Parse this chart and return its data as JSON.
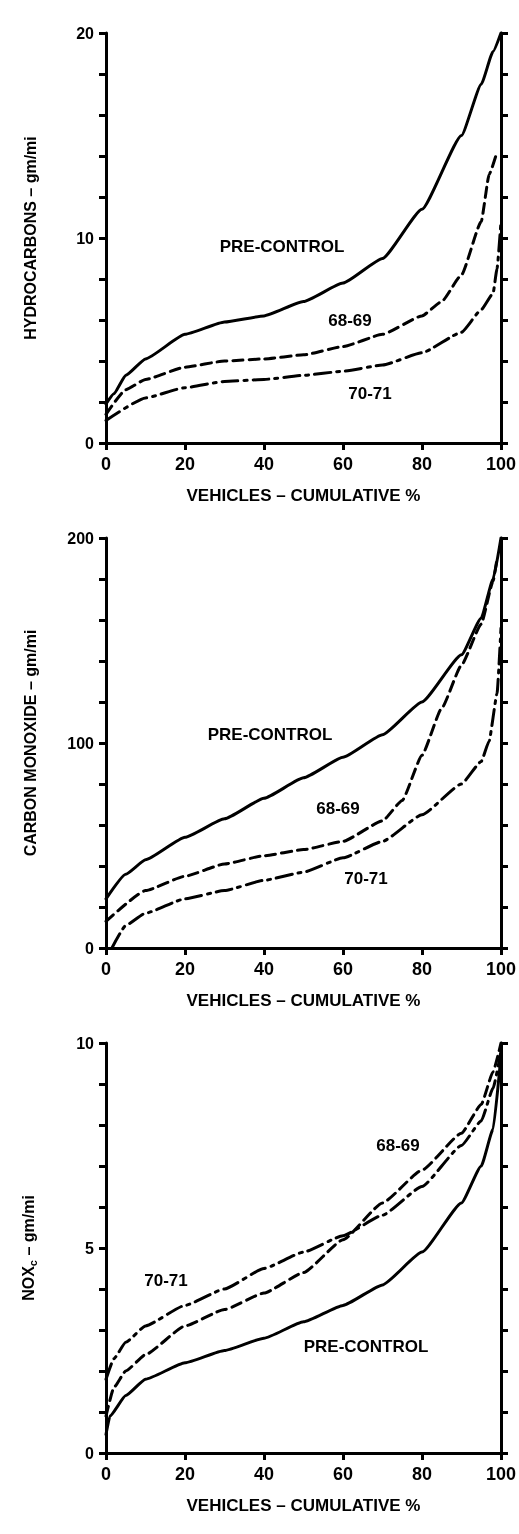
{
  "chart_data": [
    {
      "type": "line",
      "xlabel": "VEHICLES – CUMULATIVE %",
      "ylabel": "HYDROCARBONS – gm/mi",
      "xlim": [
        0,
        100
      ],
      "xticks": [
        0,
        20,
        40,
        60,
        80,
        100
      ],
      "ylim": [
        0,
        20
      ],
      "yticks": [
        0,
        {
          "value": 2,
          "label": null
        },
        {
          "value": 4,
          "label": null
        },
        {
          "value": 6,
          "label": null
        },
        {
          "value": 8,
          "label": null
        },
        10,
        {
          "value": 12,
          "label": null
        },
        {
          "value": 14,
          "label": null
        },
        {
          "value": 16,
          "label": null
        },
        {
          "value": 18,
          "label": null
        },
        20
      ],
      "grid": false,
      "legend": false,
      "marker": "none",
      "series": [
        {
          "name": "PRE-CONTROL",
          "color": "#000000",
          "line_style": "solid",
          "x": [
            0,
            2,
            5,
            10,
            20,
            30,
            40,
            50,
            60,
            70,
            80,
            90,
            95,
            98,
            100
          ],
          "values": [
            1.9,
            2.4,
            3.3,
            4.1,
            5.3,
            5.9,
            6.2,
            6.9,
            7.8,
            9.0,
            11.4,
            15.0,
            17.5,
            19.1,
            20
          ]
        },
        {
          "name": "68-69",
          "color": "#000000",
          "line_style": "dashed",
          "x": [
            0,
            5,
            10,
            20,
            30,
            40,
            50,
            60,
            70,
            80,
            85,
            90,
            95,
            97,
            99
          ],
          "values": [
            1.4,
            2.6,
            3.1,
            3.7,
            4.0,
            4.1,
            4.3,
            4.7,
            5.3,
            6.2,
            6.9,
            8.2,
            10.8,
            13.1,
            14.2
          ]
        },
        {
          "name": "70-71",
          "color": "#000000",
          "line_style": "dashdot",
          "x": [
            0,
            10,
            20,
            30,
            40,
            50,
            60,
            70,
            80,
            90,
            95,
            98,
            99,
            100
          ],
          "values": [
            1.1,
            2.2,
            2.7,
            3.0,
            3.1,
            3.3,
            3.5,
            3.8,
            4.4,
            5.4,
            6.5,
            7.3,
            8.5,
            10.8
          ]
        }
      ]
    },
    {
      "type": "line",
      "xlabel": "VEHICLES – CUMULATIVE %",
      "ylabel": "CARBON MONOXIDE – gm/mi",
      "xlim": [
        0,
        100
      ],
      "xticks": [
        0,
        20,
        40,
        60,
        80,
        100
      ],
      "ylim": [
        0,
        200
      ],
      "yticks": [
        0,
        {
          "value": 20,
          "label": null
        },
        {
          "value": 40,
          "label": null
        },
        {
          "value": 60,
          "label": null
        },
        {
          "value": 80,
          "label": null
        },
        100,
        {
          "value": 120,
          "label": null
        },
        {
          "value": 140,
          "label": null
        },
        {
          "value": 160,
          "label": null
        },
        {
          "value": 180,
          "label": null
        },
        200
      ],
      "grid": false,
      "legend": false,
      "marker": "none",
      "series": [
        {
          "name": "PRE-CONTROL",
          "color": "#000000",
          "line_style": "solid",
          "x": [
            0,
            5,
            10,
            20,
            30,
            40,
            50,
            60,
            70,
            80,
            90,
            95,
            98,
            100
          ],
          "values": [
            24,
            36,
            43,
            54,
            63,
            73,
            83,
            93,
            104,
            120,
            143,
            161,
            180,
            200
          ]
        },
        {
          "name": "68-69",
          "color": "#000000",
          "line_style": "dashed",
          "x": [
            0,
            10,
            20,
            30,
            40,
            50,
            60,
            70,
            75,
            80,
            85,
            90,
            95,
            98,
            99
          ],
          "values": [
            13,
            28,
            35,
            41,
            45,
            48,
            52,
            62,
            72,
            94,
            117,
            138,
            158,
            179,
            190
          ]
        },
        {
          "name": "70-71",
          "color": "#000000",
          "line_style": "dashdot",
          "x": [
            1.5,
            5,
            10,
            20,
            30,
            40,
            50,
            60,
            70,
            80,
            90,
            95,
            97,
            99,
            100
          ],
          "values": [
            0,
            11,
            17,
            24,
            28,
            33,
            37,
            44,
            52,
            65,
            80,
            91,
            101,
            124,
            156
          ]
        }
      ]
    },
    {
      "type": "line",
      "xlabel": "VEHICLES – CUMULATIVE %",
      "ylabel": "NOX$_{c}$ – gm/mi",
      "xlim": [
        0,
        100
      ],
      "xticks": [
        0,
        20,
        40,
        60,
        80,
        100
      ],
      "ylim": [
        0,
        10
      ],
      "yticks": [
        0,
        {
          "value": 1,
          "label": null
        },
        {
          "value": 2,
          "label": null
        },
        {
          "value": 3,
          "label": null
        },
        {
          "value": 4,
          "label": null
        },
        5,
        {
          "value": 6,
          "label": null
        },
        {
          "value": 7,
          "label": null
        },
        {
          "value": 8,
          "label": null
        },
        {
          "value": 9,
          "label": null
        },
        10
      ],
      "grid": false,
      "legend": false,
      "marker": "none",
      "series": [
        {
          "name": "PRE-CONTROL",
          "color": "#000000",
          "line_style": "solid",
          "x": [
            0,
            1,
            5,
            10,
            20,
            30,
            40,
            50,
            60,
            70,
            80,
            90,
            95,
            98,
            100
          ],
          "values": [
            0.45,
            0.9,
            1.4,
            1.8,
            2.2,
            2.5,
            2.8,
            3.2,
            3.6,
            4.1,
            4.9,
            6.1,
            7.0,
            7.9,
            9.7
          ]
        },
        {
          "name": "68-69",
          "color": "#000000",
          "line_style": "dashed",
          "x": [
            0,
            2,
            5,
            10,
            20,
            30,
            40,
            50,
            60,
            70,
            80,
            90,
            95,
            98,
            100
          ],
          "values": [
            0.9,
            1.6,
            2.0,
            2.4,
            3.1,
            3.5,
            3.9,
            4.4,
            5.2,
            6.1,
            6.9,
            7.8,
            8.5,
            9.3,
            10
          ]
        },
        {
          "name": "70-71",
          "color": "#000000",
          "line_style": "dashdot",
          "x": [
            0,
            2,
            5,
            10,
            20,
            30,
            40,
            50,
            60,
            70,
            80,
            90,
            95,
            98,
            100
          ],
          "values": [
            1.8,
            2.3,
            2.7,
            3.1,
            3.6,
            4.0,
            4.5,
            4.9,
            5.3,
            5.8,
            6.5,
            7.5,
            8.1,
            8.9,
            9.8
          ]
        }
      ]
    }
  ]
}
